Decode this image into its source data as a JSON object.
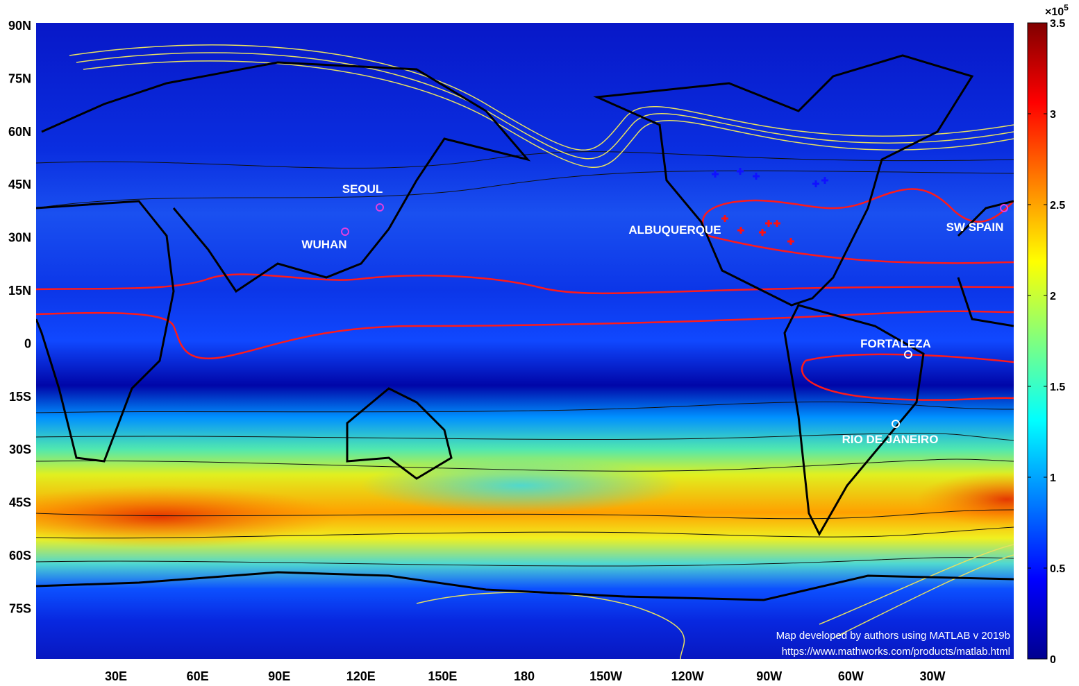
{
  "map": {
    "lat_labels": [
      "90N",
      "75N",
      "60N",
      "45N",
      "30N",
      "15N",
      "0",
      "15S",
      "30S",
      "45S",
      "60S",
      "75S"
    ],
    "lon_labels": [
      "30E",
      "60E",
      "90E",
      "120E",
      "150E",
      "180",
      "150W",
      "120W",
      "90W",
      "60W",
      "30W"
    ],
    "places": [
      {
        "label": "SEOUL"
      },
      {
        "label": "WUHAN"
      },
      {
        "label": "ALBUQUERQUE"
      },
      {
        "label": "SW SPAIN"
      },
      {
        "label": "FORTALEZA"
      },
      {
        "label": "RIO DE JANEIRO"
      }
    ],
    "credit": [
      "Map developed by authors using MATLAB v 2019b",
      "https://www.mathworks.com/products/matlab.html"
    ]
  },
  "colorbar": {
    "lim": [
      0,
      3.5
    ],
    "ticks": [
      0,
      0.5,
      1,
      1.5,
      2,
      2.5,
      3,
      3.5
    ],
    "multiplier": "×10",
    "exponent": "5"
  }
}
